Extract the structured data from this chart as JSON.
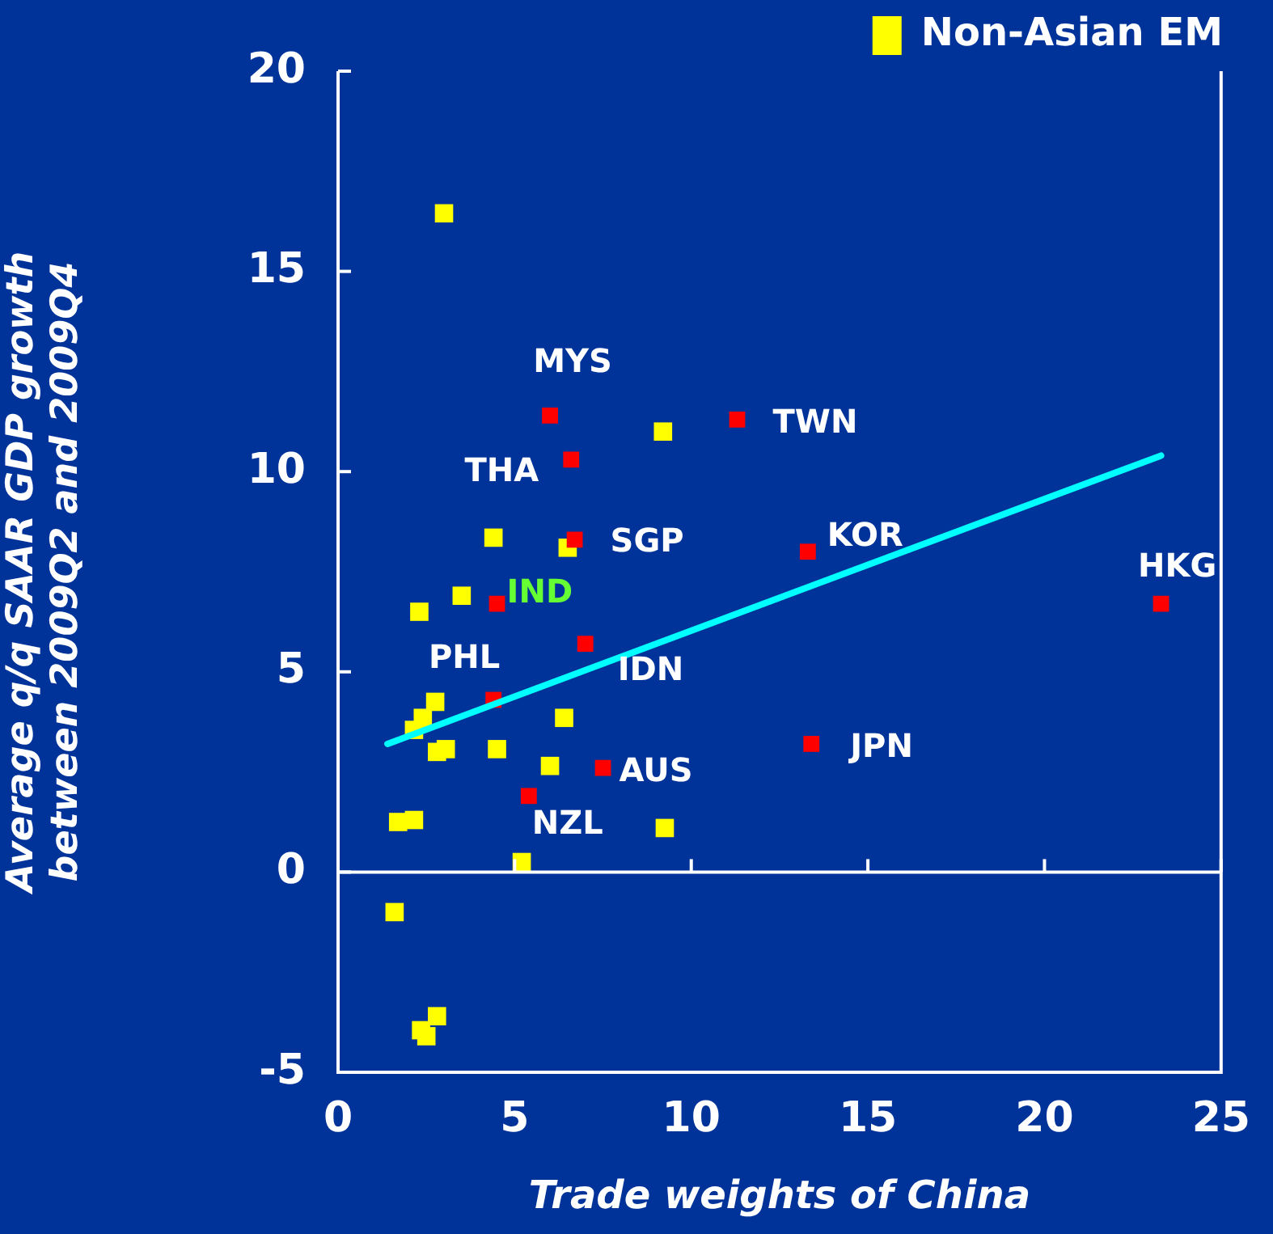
{
  "chart_data": {
    "type": "scatter",
    "xlabel": "Trade weights of China",
    "ylabel": "Average q/q SAAR GDP growth\nbetween 2009Q2 and 2009Q4",
    "xlim": [
      0,
      25
    ],
    "xticks": [
      0,
      5,
      10,
      15,
      20,
      25
    ],
    "ylim": [
      -5,
      20
    ],
    "yticks": [
      -5,
      0,
      5,
      10,
      15,
      20
    ],
    "legend": "top right",
    "marker": "square",
    "series": [
      {
        "color": "#ff0000",
        "x": [
          6.0,
          6.6,
          6.7,
          4.5,
          11.3,
          13.3,
          23.3,
          7.0,
          4.4,
          7.5,
          5.4,
          13.4
        ],
        "values": [
          11.4,
          10.3,
          8.3,
          6.7,
          11.3,
          8.0,
          6.7,
          5.7,
          4.3,
          2.6,
          1.9,
          3.2
        ]
      },
      {
        "name": "Non-Asian EM",
        "color": "#ffff00",
        "x": [
          3.0,
          4.4,
          6.5,
          9.2,
          3.5,
          2.3,
          2.75,
          6.4,
          2.4,
          2.15,
          3.05,
          2.8,
          4.5,
          6.0,
          9.25,
          5.2,
          1.7,
          2.15,
          1.6,
          2.8,
          2.35,
          2.5
        ],
        "values": [
          16.45,
          8.35,
          8.1,
          11.0,
          6.9,
          6.5,
          4.25,
          3.85,
          3.85,
          3.55,
          3.07,
          3.0,
          3.07,
          2.65,
          1.1,
          0.25,
          1.25,
          1.3,
          -1.0,
          -3.6,
          -3.95,
          -4.1
        ]
      },
      {
        "type": "line",
        "color": "#00ffff",
        "x": [
          1.4,
          23.3
        ],
        "values": [
          3.2,
          10.4
        ],
        "marker": "none"
      }
    ],
    "annotations": [
      {
        "text": "MYS",
        "x": 6.0,
        "y": 11.4
      },
      {
        "text": "THA",
        "x": 6.6,
        "y": 10.3
      },
      {
        "text": "SGP",
        "x": 6.7,
        "y": 8.3
      },
      {
        "text": "IND",
        "x": 4.5,
        "y": 6.7
      },
      {
        "text": "TWN",
        "x": 11.3,
        "y": 11.3
      },
      {
        "text": "KOR",
        "x": 13.3,
        "y": 8.0
      },
      {
        "text": "HKG",
        "x": 23.3,
        "y": 6.7
      },
      {
        "text": "IDN",
        "x": 7.0,
        "y": 5.7
      },
      {
        "text": "PHL",
        "x": 4.4,
        "y": 4.3
      },
      {
        "text": "AUS",
        "x": 7.5,
        "y": 2.6
      },
      {
        "text": "NZL",
        "x": 5.4,
        "y": 1.9
      },
      {
        "text": "JPN",
        "x": 13.4,
        "y": 3.2
      }
    ]
  }
}
